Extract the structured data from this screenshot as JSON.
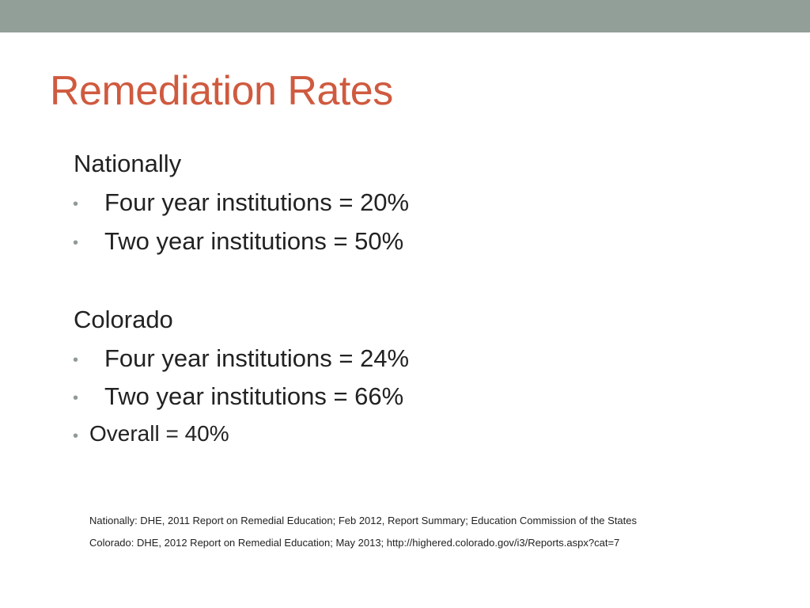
{
  "slide": {
    "title": "Remediation Rates",
    "title_color": "#cf5a3f",
    "bar_color": "#919f98",
    "bullet_color": "#909b94",
    "bullet_char": "•",
    "sections": [
      {
        "heading": "Nationally",
        "items": [
          "Four year institutions = 20%",
          "Two year institutions = 50%"
        ]
      },
      {
        "heading": "Colorado",
        "items": [
          "Four year institutions = 24%",
          "Two year institutions = 66%"
        ]
      }
    ],
    "overall": "Overall = 40%",
    "sources": [
      "Nationally: DHE, 2011 Report on Remedial Education; Feb 2012, Report Summary; Education Commission of the States",
      "Colorado: DHE, 2012 Report on Remedial Education; May 2013; http://highered.colorado.gov/i3/Reports.aspx?cat=7"
    ]
  }
}
